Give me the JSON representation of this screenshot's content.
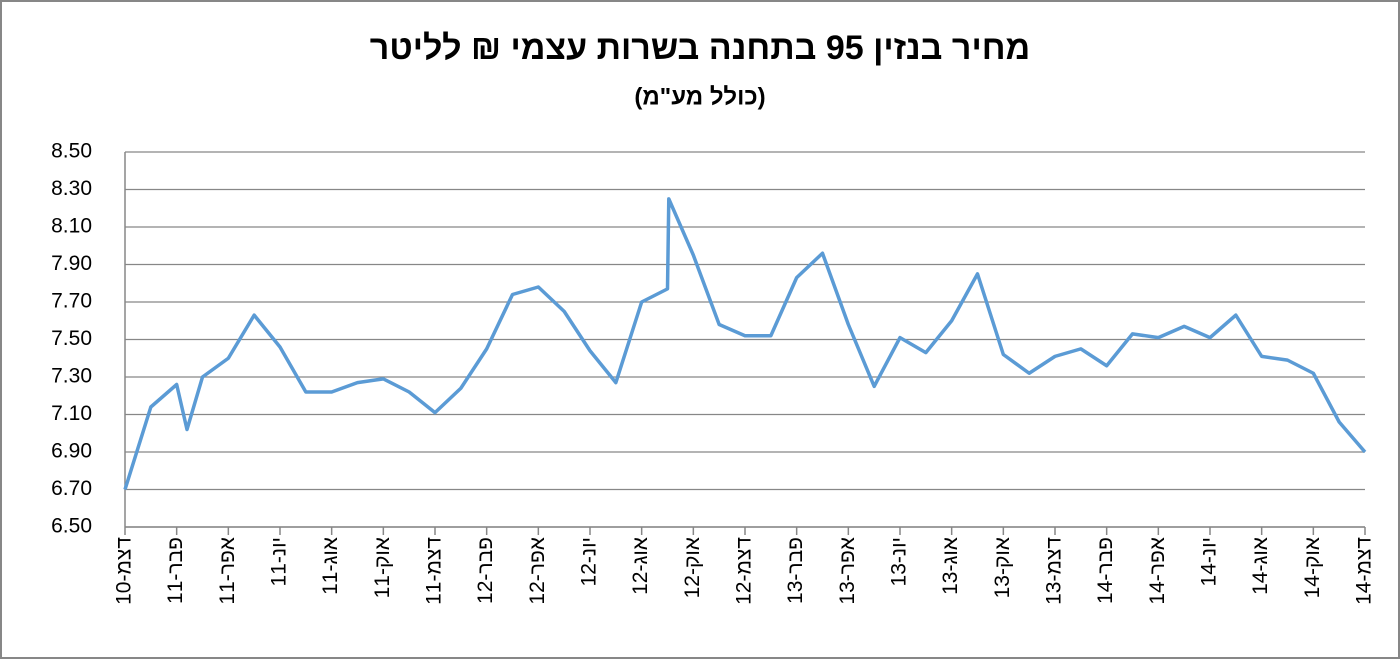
{
  "chart_data": {
    "type": "line",
    "title": "מחיר בנזין 95 בתחנה בשרות עצמי ₪ לליטר",
    "subtitle": "(כולל מע\"מ)",
    "x": [
      0,
      1,
      2,
      2.4,
      3,
      4,
      5,
      6,
      7,
      8,
      9,
      10,
      11,
      12,
      13,
      14,
      15,
      16,
      17,
      18,
      19,
      20,
      21,
      21.05,
      22,
      23,
      24,
      25,
      26,
      27,
      28,
      29,
      30,
      31,
      32,
      33,
      34,
      35,
      36,
      37,
      38,
      39,
      40,
      41,
      42,
      43,
      44,
      45,
      46,
      47,
      48
    ],
    "series": [
      {
        "color": "#5b9bd5",
        "values": [
          6.7,
          7.14,
          7.26,
          7.02,
          7.3,
          7.4,
          7.63,
          7.46,
          7.22,
          7.22,
          7.27,
          7.29,
          7.22,
          7.11,
          7.24,
          7.45,
          7.74,
          7.78,
          7.65,
          7.44,
          7.27,
          7.7,
          7.77,
          8.25,
          7.95,
          7.58,
          7.52,
          7.52,
          7.83,
          7.96,
          7.58,
          7.25,
          7.51,
          7.43,
          7.6,
          7.85,
          7.42,
          7.32,
          7.41,
          7.45,
          7.36,
          7.53,
          7.51,
          7.57,
          7.51,
          7.63,
          7.41,
          7.39,
          7.32,
          7.06,
          6.9
        ]
      }
    ],
    "xlim": [
      0,
      48
    ],
    "xticks": [
      {
        "value": 0,
        "label": "דצמ-10"
      },
      {
        "value": 2,
        "label": "פבר-11"
      },
      {
        "value": 4,
        "label": "אפר-11"
      },
      {
        "value": 6,
        "label": "יונ-11"
      },
      {
        "value": 8,
        "label": "אוג-11"
      },
      {
        "value": 10,
        "label": "אוק-11"
      },
      {
        "value": 12,
        "label": "דצמ-11"
      },
      {
        "value": 14,
        "label": "פבר-12"
      },
      {
        "value": 16,
        "label": "אפר-12"
      },
      {
        "value": 18,
        "label": "יונ-12"
      },
      {
        "value": 20,
        "label": "אוג-12"
      },
      {
        "value": 22,
        "label": "אוק-12"
      },
      {
        "value": 24,
        "label": "דצמ-12"
      },
      {
        "value": 26,
        "label": "פבר-13"
      },
      {
        "value": 28,
        "label": "אפר-13"
      },
      {
        "value": 30,
        "label": "יונ-13"
      },
      {
        "value": 32,
        "label": "אוג-13"
      },
      {
        "value": 34,
        "label": "אוק-13"
      },
      {
        "value": 36,
        "label": "דצמ-13"
      },
      {
        "value": 38,
        "label": "פבר-14"
      },
      {
        "value": 40,
        "label": "אפר-14"
      },
      {
        "value": 42,
        "label": "יונ-14"
      },
      {
        "value": 44,
        "label": "אוג-14"
      },
      {
        "value": 46,
        "label": "אוק-14"
      },
      {
        "value": 48,
        "label": "דצמ-14"
      }
    ],
    "ylim": [
      6.5,
      8.5
    ],
    "yticks": [
      {
        "value": 6.5,
        "label": "6.50"
      },
      {
        "value": 6.7,
        "label": "6.70"
      },
      {
        "value": 6.9,
        "label": "6.90"
      },
      {
        "value": 7.1,
        "label": "7.10"
      },
      {
        "value": 7.3,
        "label": "7.30"
      },
      {
        "value": 7.5,
        "label": "7.50"
      },
      {
        "value": 7.7,
        "label": "7.70"
      },
      {
        "value": 7.9,
        "label": "7.90"
      },
      {
        "value": 8.1,
        "label": "8.10"
      },
      {
        "value": 8.3,
        "label": "8.30"
      },
      {
        "value": 8.5,
        "label": "8.50"
      }
    ],
    "grid": true
  }
}
